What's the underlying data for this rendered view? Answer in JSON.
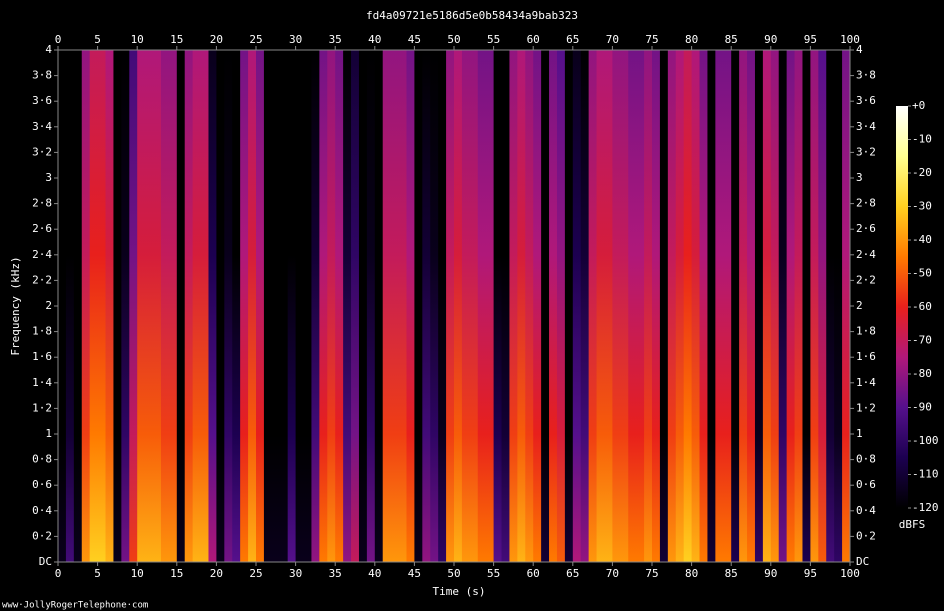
{
  "chart_data": {
    "type": "spectrogram",
    "title": "fd4a09721e5186d5e0b58434a9bab323",
    "x_label": "Time (s)",
    "y_label": "Frequency (kHz)",
    "colorbar_label": "dBFS",
    "footer": "www·JollyRogerTelephone·com",
    "xlim": [
      0,
      100
    ],
    "ylim": [
      0,
      4
    ],
    "clim": [
      -120,
      0
    ],
    "xticks": [
      0,
      5,
      10,
      15,
      20,
      25,
      30,
      35,
      40,
      45,
      50,
      55,
      60,
      65,
      70,
      75,
      80,
      85,
      90,
      95,
      100
    ],
    "yticks": [
      {
        "value": 0,
        "label": "DC"
      },
      {
        "value": 0.2,
        "label": "0·2"
      },
      {
        "value": 0.4,
        "label": "0·4"
      },
      {
        "value": 0.6,
        "label": "0·6"
      },
      {
        "value": 0.8,
        "label": "0·8"
      },
      1,
      {
        "value": 1.2,
        "label": "1·2"
      },
      {
        "value": 1.4,
        "label": "1·4"
      },
      {
        "value": 1.6,
        "label": "1·6"
      },
      {
        "value": 1.8,
        "label": "1·8"
      },
      2,
      {
        "value": 2.2,
        "label": "2·2"
      },
      {
        "value": 2.4,
        "label": "2·4"
      },
      {
        "value": 2.6,
        "label": "2·6"
      },
      {
        "value": 2.8,
        "label": "2·8"
      },
      3,
      {
        "value": 3.2,
        "label": "3·2"
      },
      {
        "value": 3.4,
        "label": "3·4"
      },
      {
        "value": 3.6,
        "label": "3·6"
      },
      {
        "value": 3.8,
        "label": "3·8"
      },
      4
    ],
    "cticks": [
      {
        "value": 0,
        "label": "+0"
      },
      -10,
      -20,
      -30,
      -40,
      -50,
      -60,
      -70,
      -80,
      -90,
      -100,
      -110,
      -120
    ],
    "colormap": [
      "#000000",
      "#1c0050",
      "#55108c",
      "#b0187a",
      "#e8201c",
      "#ff7a00",
      "#ffd020",
      "#ffff90",
      "#ffffff"
    ],
    "x": [
      0,
      1,
      2,
      3,
      4,
      5,
      6,
      7,
      8,
      9,
      10,
      11,
      12,
      13,
      14,
      15,
      16,
      17,
      18,
      19,
      20,
      21,
      22,
      23,
      24,
      25,
      26,
      27,
      28,
      29,
      30,
      31,
      32,
      33,
      34,
      35,
      36,
      37,
      38,
      39,
      40,
      41,
      42,
      43,
      44,
      45,
      46,
      47,
      48,
      49,
      50,
      51,
      52,
      53,
      54,
      55,
      56,
      57,
      58,
      59,
      60,
      61,
      62,
      63,
      64,
      65,
      66,
      67,
      68,
      69,
      70,
      71,
      72,
      73,
      74,
      75,
      76,
      77,
      78,
      79,
      80,
      81,
      82,
      83,
      84,
      85,
      86,
      87,
      88,
      89,
      90,
      91,
      92,
      93,
      94,
      95,
      96,
      97,
      98,
      99
    ],
    "values": [
      -115,
      -95,
      -115,
      -40,
      -30,
      -30,
      -35,
      -115,
      -85,
      -55,
      -35,
      -35,
      -35,
      -40,
      -40,
      -115,
      -40,
      -35,
      -35,
      -75,
      -115,
      -85,
      -90,
      -45,
      -35,
      -45,
      -115,
      -115,
      -115,
      -90,
      -115,
      -115,
      -80,
      -45,
      -40,
      -45,
      -80,
      -70,
      -115,
      -85,
      -115,
      -40,
      -40,
      -40,
      -45,
      -115,
      -80,
      -85,
      -100,
      -40,
      -35,
      -40,
      -40,
      -45,
      -45,
      -90,
      -95,
      -40,
      -35,
      -40,
      -45,
      -110,
      -45,
      -50,
      -110,
      -75,
      -80,
      -40,
      -35,
      -35,
      -40,
      -40,
      -45,
      -45,
      -40,
      -45,
      -110,
      -40,
      -35,
      -30,
      -35,
      -45,
      -110,
      -45,
      -45,
      -105,
      -40,
      -45,
      -100,
      -35,
      -40,
      -85,
      -45,
      -40,
      -105,
      -40,
      -50,
      -95,
      -100,
      -45
    ]
  }
}
